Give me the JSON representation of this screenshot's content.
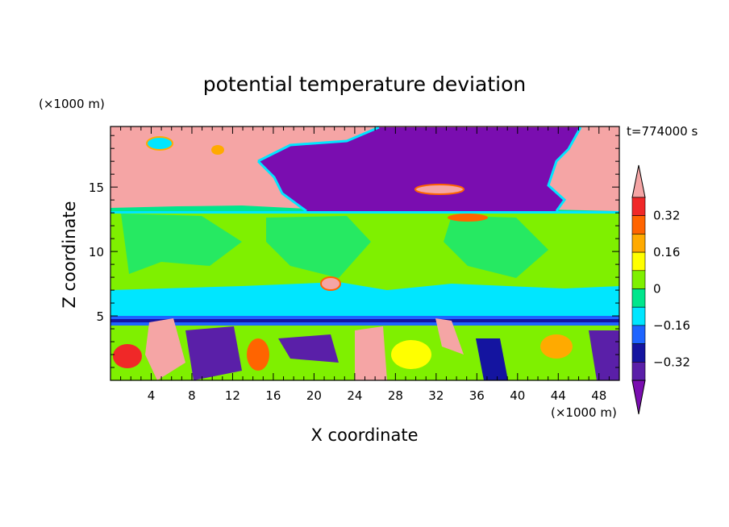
{
  "chart_data": {
    "type": "heatmap",
    "title": "potential temperature deviation",
    "xlabel": "X coordinate",
    "ylabel": "Z coordinate",
    "x_unit": "(×1000 m)",
    "y_unit": "(×1000 m)",
    "time_label": "t=774000 s",
    "xlim": [
      0,
      50
    ],
    "ylim": [
      0,
      19.7
    ],
    "x_ticks": [
      4,
      8,
      12,
      16,
      20,
      24,
      28,
      32,
      36,
      40,
      44,
      48
    ],
    "x_tick_labels": [
      "4",
      "8",
      "12",
      "16",
      "20",
      "24",
      "28",
      "32",
      "36",
      "40",
      "44",
      "48"
    ],
    "y_ticks": [
      5,
      10,
      15
    ],
    "y_tick_labels": [
      "5",
      "10",
      "15"
    ],
    "colorbar": {
      "levels": [
        -0.4,
        -0.32,
        -0.24,
        -0.16,
        -0.08,
        0,
        0.08,
        0.16,
        0.24,
        0.32,
        0.4
      ],
      "tick_values": [
        -0.32,
        -0.16,
        0,
        0.16,
        0.32
      ],
      "tick_labels": [
        "−0.32",
        "−0.16",
        "0",
        "0.16",
        "0.32"
      ],
      "colors": [
        "#7a0db0",
        "#5a1fa8",
        "#1414a0",
        "#1e64ff",
        "#00e6ff",
        "#00e68c",
        "#7ff000",
        "#ffff00",
        "#ffaa00",
        "#ff6400",
        "#f02828",
        "#f5a5a5"
      ]
    },
    "layers": [
      {
        "name": "upper_warm",
        "color": "#f5a5a5"
      },
      {
        "name": "upper_cold",
        "color": "#7a0db0"
      },
      {
        "name": "mid_band",
        "color": "#7ff000"
      },
      {
        "name": "mid_cool",
        "color": "#00e68c"
      },
      {
        "name": "low_mix",
        "color": "#00e6ff"
      }
    ]
  }
}
